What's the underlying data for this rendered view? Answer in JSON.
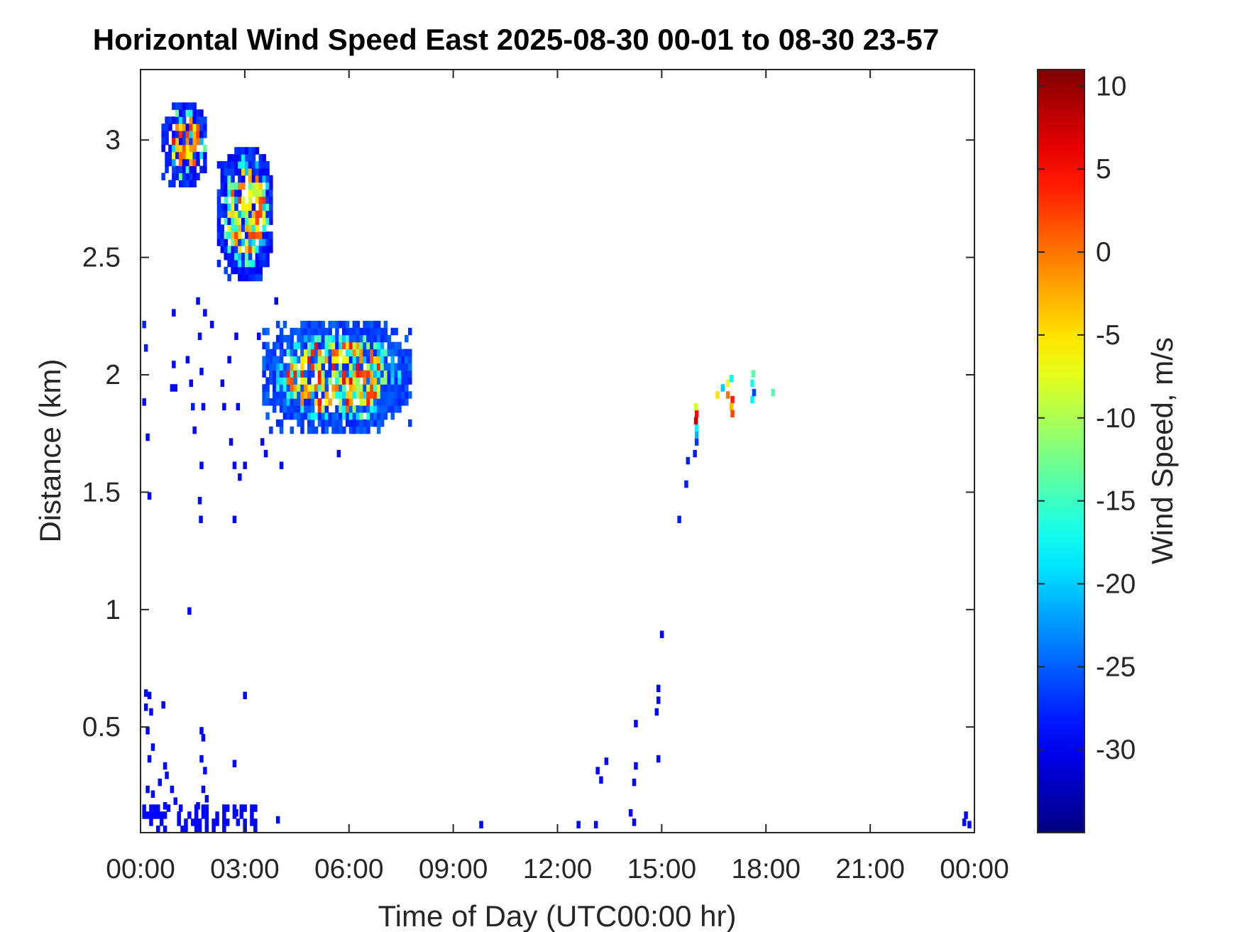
{
  "chart_data": {
    "type": "heatmap",
    "title": "Horizontal Wind Speed East 2025-08-30 00-01 to 08-30 23-57",
    "xlabel": "Time of Day (UTC00:00 hr)",
    "ylabel": "Distance (km)",
    "colorbar_label": "Wind Speed, m/s",
    "colormap": "jet",
    "x_unit": "hour",
    "xlim": [
      0,
      24
    ],
    "ylim": [
      0.05,
      3.3
    ],
    "clim": [
      -35,
      11
    ],
    "x_ticks": [
      {
        "value": 0,
        "label": "00:00"
      },
      {
        "value": 3,
        "label": "03:00"
      },
      {
        "value": 6,
        "label": "06:00"
      },
      {
        "value": 9,
        "label": "09:00"
      },
      {
        "value": 12,
        "label": "12:00"
      },
      {
        "value": 15,
        "label": "15:00"
      },
      {
        "value": 18,
        "label": "18:00"
      },
      {
        "value": 21,
        "label": "21:00"
      },
      {
        "value": 24,
        "label": "00:00"
      }
    ],
    "y_ticks": [
      {
        "value": 0.5,
        "label": "0.5"
      },
      {
        "value": 1,
        "label": "1"
      },
      {
        "value": 1.5,
        "label": "1.5"
      },
      {
        "value": 2,
        "label": "2"
      },
      {
        "value": 2.5,
        "label": "2.5"
      },
      {
        "value": 3,
        "label": "3"
      }
    ],
    "colorbar_ticks": [
      {
        "value": 10,
        "label": "10"
      },
      {
        "value": 5,
        "label": "5"
      },
      {
        "value": 0,
        "label": "0"
      },
      {
        "value": -5,
        "label": "-5"
      },
      {
        "value": -10,
        "label": "-10"
      },
      {
        "value": -15,
        "label": "-15"
      },
      {
        "value": -20,
        "label": "-20"
      },
      {
        "value": -25,
        "label": "-25"
      },
      {
        "value": -30,
        "label": "-30"
      }
    ],
    "cell_size": {
      "hours": 0.1,
      "km": 0.03
    },
    "clusters": [
      {
        "name": "early-morning-upper",
        "x_range": [
          0.6,
          1.9
        ],
        "y_range": [
          2.8,
          3.15
        ],
        "core": [
          -8,
          5
        ],
        "edge": -28
      },
      {
        "name": "early-morning-mid",
        "x_range": [
          2.2,
          3.8
        ],
        "y_range": [
          2.4,
          2.95
        ],
        "core": [
          -10,
          3
        ],
        "edge": -28
      },
      {
        "name": "morning-layer",
        "x_range": [
          3.5,
          7.7
        ],
        "y_range": [
          1.75,
          2.2
        ],
        "core": [
          -12,
          6
        ],
        "edge": -26
      }
    ],
    "points": [
      [
        0.05,
        2.2,
        -28
      ],
      [
        0.1,
        2.1,
        -28
      ],
      [
        0.05,
        1.87,
        -29
      ],
      [
        0.15,
        1.72,
        -29
      ],
      [
        0.2,
        1.47,
        -29
      ],
      [
        0.9,
        2.25,
        -29
      ],
      [
        0.85,
        1.93,
        -29
      ],
      [
        0.95,
        1.93,
        -29
      ],
      [
        0.9,
        2.03,
        -29
      ],
      [
        1.3,
        2.05,
        -29
      ],
      [
        1.4,
        1.95,
        -29
      ],
      [
        1.45,
        1.85,
        -28
      ],
      [
        1.5,
        1.75,
        -29
      ],
      [
        1.6,
        2.3,
        -29
      ],
      [
        1.65,
        2.15,
        -29
      ],
      [
        1.7,
        2.0,
        -29
      ],
      [
        1.75,
        1.85,
        -29
      ],
      [
        1.7,
        1.6,
        -29
      ],
      [
        1.65,
        1.45,
        -29
      ],
      [
        1.68,
        1.37,
        -29
      ],
      [
        1.8,
        2.25,
        -29
      ],
      [
        2.0,
        2.2,
        -29
      ],
      [
        2.3,
        1.95,
        -29
      ],
      [
        2.35,
        1.85,
        -29
      ],
      [
        2.5,
        2.05,
        -29
      ],
      [
        2.55,
        1.7,
        -29
      ],
      [
        2.65,
        1.6,
        -29
      ],
      [
        2.7,
        2.15,
        -29
      ],
      [
        2.75,
        1.85,
        -29
      ],
      [
        2.8,
        1.55,
        -29
      ],
      [
        2.65,
        1.37,
        -29
      ],
      [
        2.95,
        1.6,
        -29
      ],
      [
        3.35,
        2.15,
        -29
      ],
      [
        3.45,
        1.7,
        -29
      ],
      [
        3.55,
        1.65,
        -29
      ],
      [
        3.85,
        2.3,
        -29
      ],
      [
        4.0,
        1.6,
        -29
      ],
      [
        5.65,
        1.65,
        -29
      ],
      [
        1.35,
        0.98,
        -29
      ],
      [
        2.95,
        0.62,
        -29
      ],
      [
        14.95,
        0.88,
        -29
      ],
      [
        14.85,
        0.65,
        -29
      ],
      [
        14.85,
        0.6,
        -29
      ],
      [
        14.8,
        0.55,
        -29
      ],
      [
        14.2,
        0.5,
        -29
      ],
      [
        14.85,
        0.35,
        -29
      ],
      [
        14.2,
        0.32,
        -29
      ],
      [
        14.15,
        0.25,
        -29
      ],
      [
        13.35,
        0.34,
        -29
      ],
      [
        13.1,
        0.3,
        -29
      ],
      [
        13.2,
        0.26,
        -29
      ],
      [
        15.45,
        1.37,
        -28
      ],
      [
        15.65,
        1.52,
        -28
      ],
      [
        15.7,
        1.62,
        -28
      ],
      [
        15.9,
        1.65,
        -28
      ],
      [
        15.95,
        1.7,
        -27
      ],
      [
        15.95,
        1.73,
        -21
      ],
      [
        15.95,
        1.76,
        -18
      ],
      [
        15.93,
        1.79,
        8
      ],
      [
        15.95,
        1.82,
        5
      ],
      [
        15.93,
        1.85,
        -8
      ],
      [
        16.55,
        1.9,
        -5
      ],
      [
        16.7,
        1.93,
        -20
      ],
      [
        16.85,
        1.9,
        0
      ],
      [
        16.85,
        1.95,
        -7
      ],
      [
        16.95,
        1.97,
        -17
      ],
      [
        16.98,
        1.88,
        4
      ],
      [
        16.95,
        1.85,
        -3
      ],
      [
        16.98,
        1.82,
        2
      ],
      [
        17.55,
        1.88,
        -18
      ],
      [
        17.6,
        1.91,
        -26
      ],
      [
        17.55,
        1.95,
        -17
      ],
      [
        17.58,
        1.99,
        -14
      ],
      [
        18.15,
        1.91,
        -14
      ],
      [
        9.75,
        0.07,
        -29
      ],
      [
        12.55,
        0.07,
        -29
      ],
      [
        13.05,
        0.07,
        -29
      ],
      [
        14.15,
        0.08,
        -29
      ],
      [
        14.05,
        0.12,
        -29
      ],
      [
        23.65,
        0.08,
        -29
      ],
      [
        23.7,
        0.11,
        -29
      ],
      [
        23.8,
        0.07,
        -29
      ],
      [
        0.1,
        0.63,
        -29
      ],
      [
        0.2,
        0.62,
        -29
      ],
      [
        0.6,
        0.58,
        -29
      ],
      [
        0.1,
        0.57,
        -29
      ],
      [
        0.25,
        0.55,
        -29
      ],
      [
        0.15,
        0.47,
        -29
      ],
      [
        0.3,
        0.4,
        -29
      ],
      [
        0.2,
        0.35,
        -29
      ],
      [
        0.65,
        0.32,
        -29
      ],
      [
        0.7,
        0.28,
        -29
      ],
      [
        0.5,
        0.25,
        -29
      ],
      [
        0.15,
        0.22,
        -29
      ],
      [
        0.3,
        0.2,
        -29
      ],
      [
        0.85,
        0.22,
        -29
      ],
      [
        0.95,
        0.17,
        -29
      ],
      [
        0.65,
        0.15,
        -29
      ],
      [
        1.1,
        0.14,
        -29
      ],
      [
        1.7,
        0.47,
        -29
      ],
      [
        1.75,
        0.44,
        -29
      ],
      [
        1.7,
        0.35,
        -29
      ],
      [
        1.8,
        0.3,
        -29
      ],
      [
        1.75,
        0.22,
        -29
      ],
      [
        1.85,
        0.18,
        -29
      ],
      [
        1.6,
        0.15,
        -29
      ],
      [
        2.65,
        0.33,
        -29
      ],
      [
        2.7,
        0.12,
        -29
      ],
      [
        3.9,
        0.09,
        -29
      ]
    ],
    "surface_band": {
      "x_range": [
        0.05,
        3.3
      ],
      "y_range": [
        0.05,
        0.16
      ],
      "value": -29,
      "density": 0.45
    }
  }
}
